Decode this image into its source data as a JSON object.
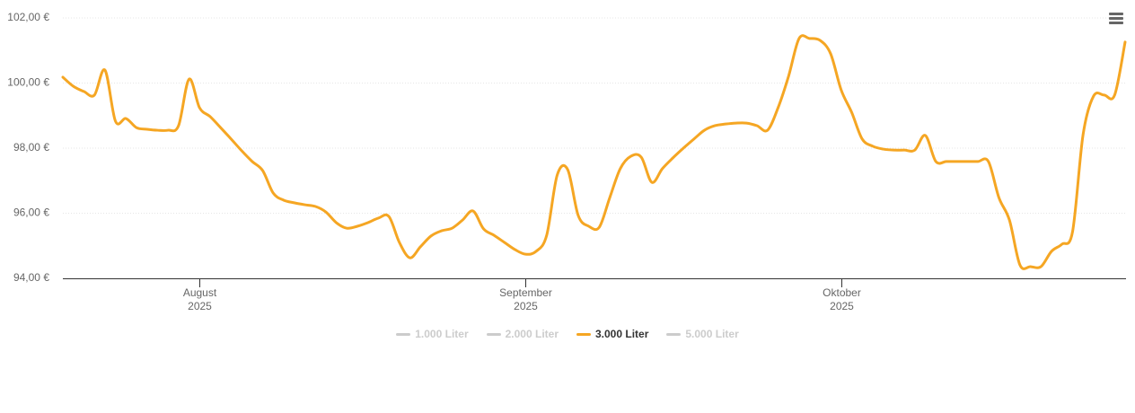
{
  "chart_data": {
    "type": "line",
    "categories": [
      null,
      null,
      null,
      null,
      null,
      null,
      null,
      null,
      null,
      null,
      null,
      null,
      null,
      "August\n2025",
      null,
      null,
      null,
      null,
      null,
      null,
      null,
      null,
      null,
      null,
      null,
      null,
      null,
      null,
      null,
      null,
      null,
      null,
      null,
      null,
      null,
      null,
      null,
      null,
      null,
      null,
      null,
      null,
      null,
      null,
      "September\n2025",
      null,
      null,
      null,
      null,
      null,
      null,
      null,
      null,
      null,
      null,
      null,
      null,
      null,
      null,
      null,
      null,
      null,
      null,
      null,
      null,
      null,
      null,
      null,
      null,
      null,
      null,
      null,
      null,
      null,
      "Oktober\n2025",
      null,
      null,
      null,
      null,
      null,
      null,
      null,
      null,
      null,
      null,
      null,
      null,
      null,
      null,
      null,
      null,
      null,
      null,
      null,
      null,
      null,
      null,
      null,
      null,
      null,
      null,
      null
    ],
    "series": [
      {
        "name": "1.000 Liter",
        "visible": false
      },
      {
        "name": "2.000 Liter",
        "visible": false
      },
      {
        "name": "3.000 Liter",
        "visible": true,
        "color": "#f5a623",
        "values": [
          100.18,
          99.9,
          99.74,
          99.63,
          100.4,
          98.83,
          98.91,
          98.63,
          98.58,
          98.55,
          98.55,
          98.69,
          100.12,
          99.24,
          98.97,
          98.63,
          98.28,
          97.92,
          97.59,
          97.31,
          96.62,
          96.4,
          96.32,
          96.26,
          96.21,
          96.04,
          95.71,
          95.54,
          95.6,
          95.71,
          95.85,
          95.9,
          95.1,
          94.63,
          94.97,
          95.3,
          95.46,
          95.54,
          95.79,
          96.07,
          95.52,
          95.32,
          95.1,
          94.88,
          94.74,
          94.83,
          95.32,
          97.17,
          97.34,
          95.93,
          95.6,
          95.57,
          96.48,
          97.37,
          97.75,
          97.72,
          96.95,
          97.37,
          97.7,
          98.0,
          98.28,
          98.55,
          98.69,
          98.74,
          98.77,
          98.77,
          98.69,
          98.55,
          99.24,
          100.21,
          101.37,
          101.37,
          101.31,
          100.9,
          99.79,
          99.1,
          98.28,
          98.06,
          97.97,
          97.94,
          97.94,
          97.94,
          98.39,
          97.59,
          97.59,
          97.59,
          97.59,
          97.59,
          97.59,
          96.48,
          95.79,
          94.41,
          94.36,
          94.36,
          94.83,
          95.05,
          95.43,
          98.41,
          99.6,
          99.63,
          99.63,
          101.26
        ]
      },
      {
        "name": "5.000 Liter",
        "visible": false
      }
    ],
    "ylim": [
      94,
      102
    ],
    "yticks": [
      {
        "value": 94,
        "label": "94,00 €"
      },
      {
        "value": 96,
        "label": "96,00 €"
      },
      {
        "value": 98,
        "label": "98,00 €"
      },
      {
        "value": 100,
        "label": "100,00 €"
      },
      {
        "value": 102,
        "label": "102,00 €"
      }
    ],
    "grid": true
  }
}
